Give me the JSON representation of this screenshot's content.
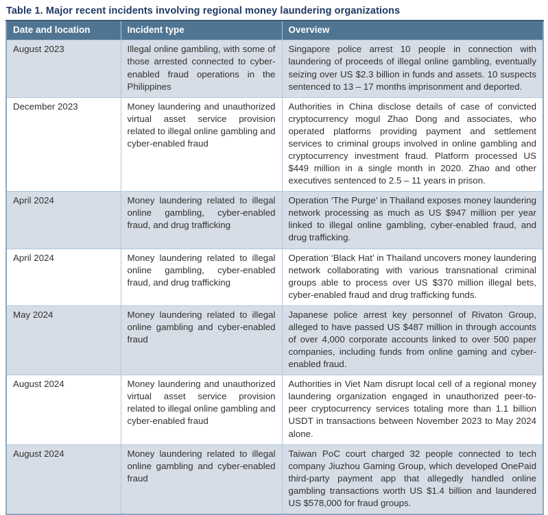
{
  "title": "Table 1. Major recent incidents involving regional money laundering organizations",
  "table": {
    "columns": [
      "Date and location",
      "Incident type",
      "Overview"
    ],
    "rows": [
      {
        "date": "August 2023",
        "incident": "Illegal online gambling, with some of those arrested connected to cyber-enabled fraud operations in the Philippines",
        "overview": "Singapore police arrest 10 people in connection with laundering of proceeds of illegal online gambling, eventually seizing over US $2.3 billion in funds and assets. 10 suspects sentenced to 13 – 17 months imprisonment and deported."
      },
      {
        "date": "December 2023",
        "incident": "Money laundering and unauthorized virtual asset service provision related to illegal online gambling and cyber-enabled fraud",
        "overview": "Authorities in China disclose details of case of convicted cryptocurrency mogul Zhao Dong and associates, who operated platforms providing payment and settlement services to criminal groups involved in online gambling and cryptocurrency investment fraud. Platform processed US $449 million in a single month in 2020. Zhao and other executives sentenced to 2.5 – 11 years in prison."
      },
      {
        "date": "April 2024",
        "incident": "Money laundering related to illegal online gambling, cyber-enabled fraud, and drug trafficking",
        "overview": "Operation ‘The Purge’ in Thailand exposes money laundering network processing as much as US $947 million per year linked to illegal online gambling, cyber-enabled fraud, and drug trafficking."
      },
      {
        "date": "April 2024",
        "incident": "Money laundering related to illegal online gambling, cyber-enabled fraud, and drug trafficking",
        "overview": "Operation ‘Black Hat’ in Thailand uncovers money laundering network collaborating with various transnational criminal groups able to process over US $370 million illegal bets, cyber-enabled fraud and drug trafficking funds."
      },
      {
        "date": "May 2024",
        "incident": "Money laundering related to illegal online gambling and cyber-enabled fraud",
        "overview": "Japanese police arrest key personnel of Rivaton Group, alleged to have passed US $487 million in through accounts of over 4,000 corporate accounts linked to over 500 paper companies, including funds from online gaming and cyber-enabled fraud."
      },
      {
        "date": "August 2024",
        "incident": "Money laundering and unauthorized virtual asset service provision related to illegal online gambling and cyber-enabled fraud",
        "overview": "Authorities in Viet Nam disrupt local cell of a regional money laundering organization engaged in unauthorized peer-to-peer cryptocurrency services totaling more than 1.1 billion USDT in transactions between November 2023 to May 2024 alone."
      },
      {
        "date": "August 2024",
        "incident": "Money laundering related to illegal online gambling and cyber-enabled fraud",
        "overview": "Taiwan PoC court charged 32 people connected to tech company Jiuzhou Gaming Group, which developed OnePaid third-party payment app that allegedly handled online gambling transactions worth US $1.4 billion and laundered US $578,000 for fraud groups."
      }
    ]
  },
  "colors": {
    "title_text": "#1f3864",
    "header_bg": "#4f7592",
    "header_text": "#ffffff",
    "row_shaded_bg": "#d7dde6",
    "row_white_bg": "#ffffff",
    "inner_border": "#aec6dc",
    "outer_border": "#8ba6bf",
    "body_text": "#303030"
  }
}
